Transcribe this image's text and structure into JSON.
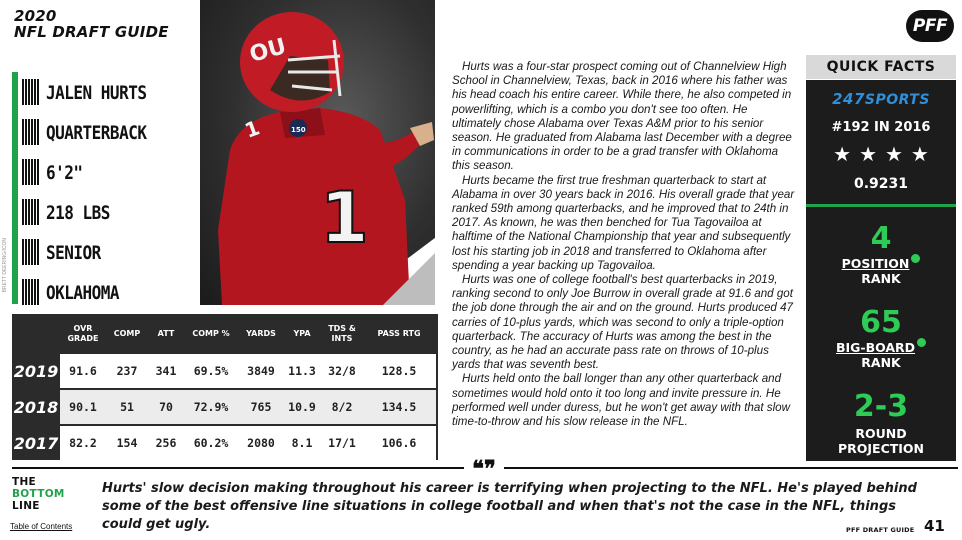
{
  "header": {
    "line1": "2020",
    "line2": "NFL DRAFT GUIDE",
    "logo_text": "PFF"
  },
  "player_info": [
    "JALEN HURTS",
    "QUARTERBACK",
    "6'2\"",
    "218 LBS",
    "SENIOR",
    "OKLAHOMA"
  ],
  "photo_credit": "BRETT DEERING/ICON",
  "jersey": {
    "number": "1",
    "patch": "150"
  },
  "stats": {
    "columns": [
      "OVR GRADE",
      "COMP",
      "ATT",
      "COMP %",
      "YARDS",
      "YPA",
      "TDS & INTS",
      "PASS RTG"
    ],
    "rows": [
      {
        "year": "2019",
        "values": [
          "91.6",
          "237",
          "341",
          "69.5%",
          "3849",
          "11.3",
          "32/8",
          "128.5"
        ]
      },
      {
        "year": "2018",
        "values": [
          "90.1",
          "51",
          "70",
          "72.9%",
          "765",
          "10.9",
          "8/2",
          "134.5"
        ]
      },
      {
        "year": "2017",
        "values": [
          "82.2",
          "154",
          "256",
          "60.2%",
          "2080",
          "8.1",
          "17/1",
          "106.6"
        ]
      }
    ]
  },
  "bio": [
    "Hurts was a four-star prospect coming out of Channelview High School in Channelview, Texas, back in 2016 where his father was his head coach his entire career. While there, he also competed in powerlifting, which is a combo you don't see too often. He ultimately chose Alabama over Texas A&M prior to his senior season. He graduated from Alabama last December with a degree in communications in order to be a grad transfer with Oklahoma this season.",
    "Hurts became the first true freshman quarterback to start at Alabama in over 30 years back in 2016. His overall grade that year ranked 59th among quarterbacks, and he improved that to 24th in 2017. As known, he was then benched for Tua Tagovailoa at halftime of the National Championship that year and subsequently lost his starting job in 2018 and transferred to Oklahoma after spending a year backing up Tagovailoa.",
    "Hurts was one of college football's best quarterbacks in 2019, ranking second to only Joe Burrow in overall grade at 91.6 and got the job done through the air and on the ground. Hurts produced 47 carries of 10-plus yards, which was second to only a triple-option quarterback. The accuracy of Hurts was among the best in the country, as he had an accurate pass rate on throws of 10-plus yards that was seventh best.",
    "Hurts held onto the ball longer than any other quarterback and sometimes would hold onto it too long and invite pressure in. He performed well under duress, but he won't get away with that slow time-to-throw and his slow release in the NFL."
  ],
  "quick_facts": {
    "title": "QUICK FACTS",
    "source_num": "247",
    "source_name": "SPORTS",
    "rank_247": "#192 IN 2016",
    "stars": "★★★★",
    "rating": "0.9231",
    "position_rank": "4",
    "position_label": "POSITION",
    "position_label2": "RANK",
    "big_board_rank": "65",
    "big_board_label": "BIG-BOARD",
    "big_board_label2": "RANK",
    "round": "2-3",
    "round_label": "ROUND",
    "round_label2": "PROJECTION",
    "colors": {
      "green": "#2ecc57",
      "dark": "#1c1c1c"
    }
  },
  "bottom": {
    "quote_marks": "❝❞",
    "label_the": "THE",
    "label_bottom": "BOTTOM",
    "label_line": "LINE",
    "text": "Hurts' slow decision making throughout his career is terrifying when projecting to the NFL. He's played behind some of the best offensive line situations in college football and when that's not the case in the NFL, things could get ugly."
  },
  "footer": {
    "toc": "Table of Contents",
    "guide": "PFF DRAFT GUIDE",
    "page": "41"
  }
}
